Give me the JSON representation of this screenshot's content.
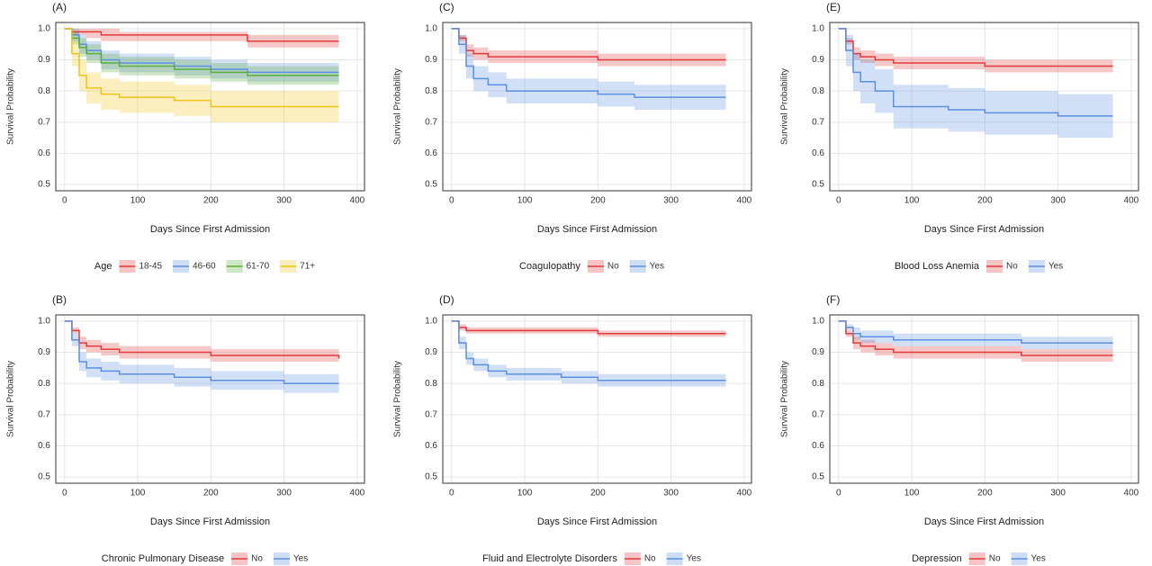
{
  "chart_data": [
    {
      "type": "line",
      "title": "(A)",
      "x_label": "Days Since First Admission",
      "y_label": "Survival Probability",
      "legend_title": "Age",
      "x": [
        0,
        10,
        20,
        30,
        50,
        75,
        100,
        150,
        200,
        250,
        300,
        375
      ],
      "series": [
        {
          "name": "18-45",
          "color": "#e03b3b",
          "values": [
            1,
            0.99,
            0.99,
            0.99,
            0.98,
            0.98,
            0.98,
            0.98,
            0.98,
            0.96,
            0.96,
            0.96
          ],
          "lower": [
            1,
            0.98,
            0.98,
            0.97,
            0.96,
            0.96,
            0.96,
            0.96,
            0.96,
            0.94,
            0.94,
            0.94
          ],
          "upper": [
            1,
            1,
            1,
            1,
            1,
            0.99,
            0.99,
            0.99,
            0.99,
            0.98,
            0.98,
            0.98
          ]
        },
        {
          "name": "46-60",
          "color": "#5b8fe0",
          "values": [
            1,
            0.98,
            0.95,
            0.93,
            0.9,
            0.89,
            0.89,
            0.88,
            0.87,
            0.86,
            0.86,
            0.86
          ],
          "lower": [
            1,
            0.96,
            0.92,
            0.9,
            0.87,
            0.86,
            0.86,
            0.85,
            0.84,
            0.83,
            0.83,
            0.83
          ],
          "upper": [
            1,
            1,
            0.98,
            0.96,
            0.93,
            0.92,
            0.92,
            0.91,
            0.9,
            0.89,
            0.89,
            0.89
          ]
        },
        {
          "name": "61-70",
          "color": "#5aad3a",
          "values": [
            1,
            0.97,
            0.94,
            0.92,
            0.89,
            0.88,
            0.88,
            0.87,
            0.86,
            0.85,
            0.85,
            0.85
          ],
          "lower": [
            1,
            0.95,
            0.91,
            0.89,
            0.86,
            0.85,
            0.85,
            0.84,
            0.83,
            0.82,
            0.82,
            0.82
          ],
          "upper": [
            1,
            0.99,
            0.97,
            0.95,
            0.92,
            0.91,
            0.91,
            0.9,
            0.89,
            0.88,
            0.88,
            0.88
          ]
        },
        {
          "name": "71+",
          "color": "#f0c419",
          "values": [
            1,
            0.92,
            0.85,
            0.81,
            0.79,
            0.78,
            0.78,
            0.77,
            0.75,
            0.75,
            0.75,
            0.75
          ],
          "lower": [
            1,
            0.88,
            0.8,
            0.76,
            0.74,
            0.73,
            0.73,
            0.72,
            0.7,
            0.7,
            0.7,
            0.7
          ],
          "upper": [
            1,
            0.96,
            0.9,
            0.86,
            0.84,
            0.83,
            0.83,
            0.82,
            0.8,
            0.8,
            0.8,
            0.8
          ]
        }
      ],
      "xlim": [
        -12,
        410
      ],
      "ylim": [
        0.48,
        1.02
      ],
      "xticks": [
        0,
        100,
        200,
        300,
        400
      ],
      "yticks": [
        0.5,
        0.6,
        0.7,
        0.8,
        0.9,
        {
          "value": 1,
          "label": "1.0"
        }
      ],
      "grid": true
    },
    {
      "type": "line",
      "title": "(C)",
      "x_label": "Days Since First Admission",
      "y_label": "Survival Probability",
      "legend_title": "Coagulopathy",
      "x": [
        0,
        10,
        20,
        30,
        50,
        75,
        100,
        150,
        200,
        250,
        300,
        375
      ],
      "series": [
        {
          "name": "No",
          "color": "#e03b3b",
          "values": [
            1,
            0.97,
            0.93,
            0.92,
            0.91,
            0.91,
            0.91,
            0.91,
            0.9,
            0.9,
            0.9,
            0.9
          ],
          "lower": [
            1,
            0.96,
            0.91,
            0.9,
            0.89,
            0.89,
            0.89,
            0.89,
            0.88,
            0.88,
            0.88,
            0.88
          ],
          "upper": [
            1,
            0.98,
            0.95,
            0.94,
            0.93,
            0.93,
            0.93,
            0.93,
            0.92,
            0.92,
            0.92,
            0.92
          ]
        },
        {
          "name": "Yes",
          "color": "#5b8fe0",
          "values": [
            1,
            0.95,
            0.88,
            0.84,
            0.82,
            0.8,
            0.8,
            0.8,
            0.79,
            0.78,
            0.78,
            0.78
          ],
          "lower": [
            1,
            0.92,
            0.84,
            0.8,
            0.78,
            0.76,
            0.76,
            0.76,
            0.75,
            0.74,
            0.74,
            0.74
          ],
          "upper": [
            1,
            0.98,
            0.92,
            0.88,
            0.86,
            0.84,
            0.84,
            0.84,
            0.83,
            0.82,
            0.82,
            0.82
          ]
        }
      ],
      "xlim": [
        -12,
        410
      ],
      "ylim": [
        0.48,
        1.02
      ],
      "xticks": [
        0,
        100,
        200,
        300,
        400
      ],
      "yticks": [
        0.5,
        0.6,
        0.7,
        0.8,
        0.9,
        {
          "value": 1,
          "label": "1.0"
        }
      ],
      "grid": true
    },
    {
      "type": "line",
      "title": "(E)",
      "x_label": "Days Since First Admission",
      "y_label": "Survival Probability",
      "legend_title": "Blood Loss Anemia",
      "x": [
        0,
        10,
        20,
        30,
        50,
        75,
        100,
        150,
        200,
        250,
        300,
        375
      ],
      "series": [
        {
          "name": "No",
          "color": "#e03b3b",
          "values": [
            1,
            0.96,
            0.92,
            0.91,
            0.9,
            0.89,
            0.89,
            0.89,
            0.88,
            0.88,
            0.88,
            0.88
          ],
          "lower": [
            1,
            0.95,
            0.9,
            0.89,
            0.88,
            0.87,
            0.87,
            0.87,
            0.86,
            0.86,
            0.86,
            0.86
          ],
          "upper": [
            1,
            0.97,
            0.94,
            0.93,
            0.92,
            0.91,
            0.91,
            0.91,
            0.9,
            0.9,
            0.9,
            0.9
          ]
        },
        {
          "name": "Yes",
          "color": "#5b8fe0",
          "values": [
            1,
            0.93,
            0.86,
            0.83,
            0.8,
            0.75,
            0.75,
            0.74,
            0.73,
            0.73,
            0.72,
            0.72
          ],
          "lower": [
            1,
            0.88,
            0.8,
            0.76,
            0.73,
            0.68,
            0.68,
            0.67,
            0.66,
            0.66,
            0.65,
            0.65
          ],
          "upper": [
            1,
            0.98,
            0.92,
            0.9,
            0.87,
            0.82,
            0.82,
            0.81,
            0.8,
            0.8,
            0.79,
            0.79
          ]
        }
      ],
      "xlim": [
        -12,
        410
      ],
      "ylim": [
        0.48,
        1.02
      ],
      "xticks": [
        0,
        100,
        200,
        300,
        400
      ],
      "yticks": [
        0.5,
        0.6,
        0.7,
        0.8,
        0.9,
        {
          "value": 1,
          "label": "1.0"
        }
      ],
      "grid": true
    },
    {
      "type": "line",
      "title": "(B)",
      "x_label": "Days Since First Admission",
      "y_label": "Survival Probability",
      "legend_title": "Chronic Pulmonary Disease",
      "x": [
        0,
        10,
        20,
        30,
        50,
        75,
        100,
        150,
        200,
        250,
        300,
        375
      ],
      "series": [
        {
          "name": "No",
          "color": "#e03b3b",
          "values": [
            1,
            0.97,
            0.93,
            0.92,
            0.91,
            0.9,
            0.9,
            0.9,
            0.89,
            0.89,
            0.89,
            0.88
          ],
          "lower": [
            1,
            0.96,
            0.91,
            0.9,
            0.89,
            0.88,
            0.88,
            0.88,
            0.87,
            0.87,
            0.87,
            0.86
          ],
          "upper": [
            1,
            0.98,
            0.95,
            0.94,
            0.93,
            0.92,
            0.92,
            0.92,
            0.91,
            0.91,
            0.91,
            0.9
          ]
        },
        {
          "name": "Yes",
          "color": "#5b8fe0",
          "values": [
            1,
            0.94,
            0.87,
            0.85,
            0.84,
            0.83,
            0.83,
            0.82,
            0.81,
            0.81,
            0.8,
            0.8
          ],
          "lower": [
            1,
            0.92,
            0.84,
            0.82,
            0.81,
            0.8,
            0.8,
            0.79,
            0.78,
            0.78,
            0.77,
            0.77
          ],
          "upper": [
            1,
            0.96,
            0.9,
            0.88,
            0.87,
            0.86,
            0.86,
            0.85,
            0.84,
            0.84,
            0.83,
            0.83
          ]
        }
      ],
      "xlim": [
        -12,
        410
      ],
      "ylim": [
        0.48,
        1.02
      ],
      "xticks": [
        0,
        100,
        200,
        300,
        400
      ],
      "yticks": [
        0.5,
        0.6,
        0.7,
        0.8,
        0.9,
        {
          "value": 1,
          "label": "1.0"
        }
      ],
      "grid": true
    },
    {
      "type": "line",
      "title": "(D)",
      "x_label": "Days Since First Admission",
      "y_label": "Survival Probability",
      "legend_title": "Fluid and Electrolyte Disorders",
      "x": [
        0,
        10,
        20,
        30,
        50,
        75,
        100,
        150,
        200,
        250,
        300,
        375
      ],
      "series": [
        {
          "name": "No",
          "color": "#e03b3b",
          "values": [
            1,
            0.98,
            0.97,
            0.97,
            0.97,
            0.97,
            0.97,
            0.97,
            0.96,
            0.96,
            0.96,
            0.96
          ],
          "lower": [
            1,
            0.97,
            0.96,
            0.96,
            0.96,
            0.96,
            0.96,
            0.96,
            0.95,
            0.95,
            0.95,
            0.95
          ],
          "upper": [
            1,
            0.99,
            0.98,
            0.98,
            0.98,
            0.98,
            0.98,
            0.98,
            0.97,
            0.97,
            0.97,
            0.97
          ]
        },
        {
          "name": "Yes",
          "color": "#5b8fe0",
          "values": [
            1,
            0.93,
            0.88,
            0.86,
            0.84,
            0.83,
            0.83,
            0.82,
            0.81,
            0.81,
            0.81,
            0.81
          ],
          "lower": [
            1,
            0.91,
            0.86,
            0.84,
            0.82,
            0.81,
            0.81,
            0.8,
            0.79,
            0.79,
            0.79,
            0.79
          ],
          "upper": [
            1,
            0.95,
            0.9,
            0.88,
            0.86,
            0.85,
            0.85,
            0.84,
            0.83,
            0.83,
            0.83,
            0.83
          ]
        }
      ],
      "xlim": [
        -12,
        410
      ],
      "ylim": [
        0.48,
        1.02
      ],
      "xticks": [
        0,
        100,
        200,
        300,
        400
      ],
      "yticks": [
        0.5,
        0.6,
        0.7,
        0.8,
        0.9,
        {
          "value": 1,
          "label": "1.0"
        }
      ],
      "grid": true
    },
    {
      "type": "line",
      "title": "(F)",
      "x_label": "Days Since First Admission",
      "y_label": "Survival Probability",
      "legend_title": "Depression",
      "x": [
        0,
        10,
        20,
        30,
        50,
        75,
        100,
        150,
        200,
        250,
        300,
        375
      ],
      "series": [
        {
          "name": "No",
          "color": "#e03b3b",
          "values": [
            1,
            0.96,
            0.93,
            0.92,
            0.91,
            0.9,
            0.9,
            0.9,
            0.9,
            0.89,
            0.89,
            0.89
          ],
          "lower": [
            1,
            0.95,
            0.91,
            0.9,
            0.89,
            0.88,
            0.88,
            0.88,
            0.88,
            0.87,
            0.87,
            0.87
          ],
          "upper": [
            1,
            0.97,
            0.95,
            0.94,
            0.93,
            0.92,
            0.92,
            0.92,
            0.92,
            0.91,
            0.91,
            0.91
          ]
        },
        {
          "name": "Yes",
          "color": "#5b8fe0",
          "values": [
            1,
            0.98,
            0.96,
            0.95,
            0.95,
            0.94,
            0.94,
            0.94,
            0.94,
            0.93,
            0.93,
            0.93
          ],
          "lower": [
            1,
            0.97,
            0.94,
            0.93,
            0.93,
            0.92,
            0.92,
            0.92,
            0.92,
            0.91,
            0.91,
            0.91
          ],
          "upper": [
            1,
            0.99,
            0.98,
            0.97,
            0.97,
            0.96,
            0.96,
            0.96,
            0.96,
            0.95,
            0.95,
            0.95
          ]
        }
      ],
      "xlim": [
        -12,
        410
      ],
      "ylim": [
        0.48,
        1.02
      ],
      "xticks": [
        0,
        100,
        200,
        300,
        400
      ],
      "yticks": [
        0.5,
        0.6,
        0.7,
        0.8,
        0.9,
        {
          "value": 1,
          "label": "1.0"
        }
      ],
      "grid": true
    }
  ]
}
